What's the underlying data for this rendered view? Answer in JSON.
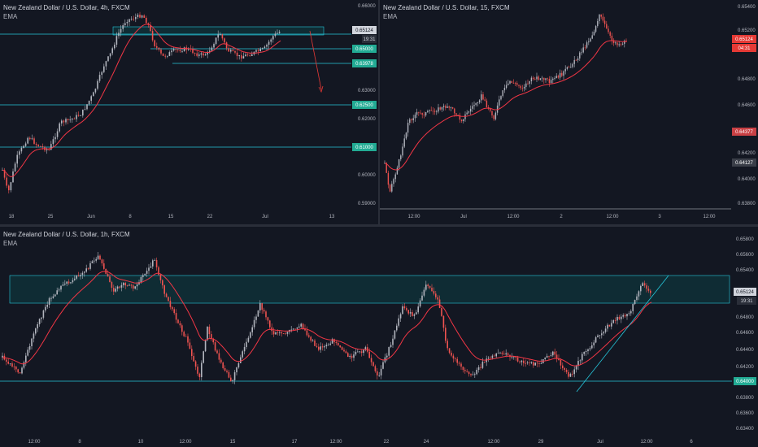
{
  "panels": {
    "p1": {
      "title": "New Zealand Dollar / U.S. Dollar, 4h, FXCM",
      "indicator": "EMA",
      "price_ticks": [
        "0.66000",
        "0.62000",
        "0.60000",
        "0.59000",
        "0.63000"
      ],
      "time_ticks": [
        "18",
        "25",
        "Jun",
        "8",
        "15",
        "22",
        "Jul",
        "13"
      ],
      "level_tags": [
        "0.65000",
        "0.63978",
        "0.62500",
        "0.61000"
      ],
      "last_price": "0.65124",
      "countdown": "19:31"
    },
    "p2": {
      "title": "New Zealand Dollar / U.S. Dollar, 15, FXCM",
      "indicator": "EMA",
      "price_ticks": [
        "0.65400",
        "0.65200",
        "0.64800",
        "0.64600",
        "0.64200",
        "0.64000",
        "0.63800"
      ],
      "time_ticks": [
        "12:00",
        "Jul",
        "12:00",
        "2",
        "12:00",
        "3",
        "12:00"
      ],
      "last_price": "0.65124",
      "countdown": "04:31",
      "marker_tags": [
        "0.64377",
        "0.64127"
      ]
    },
    "p3": {
      "title": "New Zealand Dollar / U.S. Dollar, 1h, FXCM",
      "indicator": "EMA",
      "price_ticks": [
        "0.65800",
        "0.65600",
        "0.65400",
        "0.64800",
        "0.64600",
        "0.64400",
        "0.64200",
        "0.63800",
        "0.63600",
        "0.63400"
      ],
      "time_ticks": [
        "12:00",
        "8",
        "10",
        "12:00",
        "15",
        "17",
        "12:00",
        "22",
        "24",
        "12:00",
        "29",
        "Jul",
        "12:00",
        "6"
      ],
      "level_tags": [
        "0.64000"
      ],
      "last_price": "0.65124",
      "countdown": "19:31"
    }
  },
  "colors": {
    "background": "#131722",
    "bull": "#b2b5be",
    "bear": "#ef5350",
    "ema": "#f23645",
    "level": "#26c6da",
    "zone_fill": "#0f2c34",
    "tag_bg": "#22ab94",
    "price_red": "#e53935"
  }
}
